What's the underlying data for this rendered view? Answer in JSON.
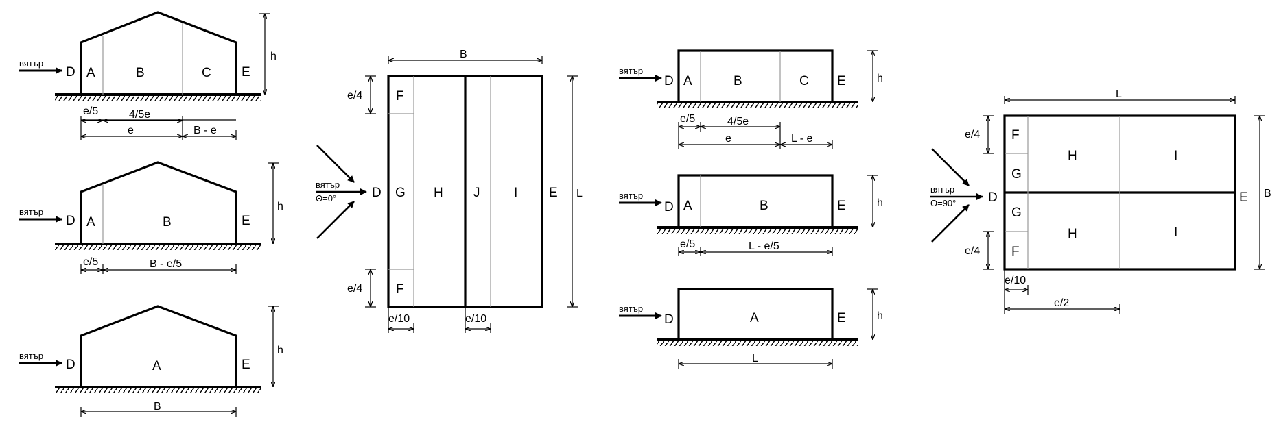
{
  "wind_word": "вятър",
  "theta_0": "Θ=0°",
  "theta_90": "Θ=90°",
  "face_d": "D",
  "face_e": "E",
  "dims": {
    "h": "h",
    "B": "B",
    "L": "L",
    "e5": "e/5",
    "e45": "4/5e",
    "e": "e",
    "Bme": "B - e",
    "Bme5": "B - e/5",
    "Lme": "L - e",
    "Lme5": "L - e/5",
    "e4": "e/4",
    "e10": "e/10",
    "e2": "e/2"
  },
  "zones": {
    "A": "A",
    "B": "B",
    "C": "C",
    "F": "F",
    "G": "G",
    "H": "H",
    "I": "I",
    "J": "J"
  },
  "colors": {
    "line": "#000000",
    "zone_line": "#999999",
    "background": "#ffffff"
  }
}
